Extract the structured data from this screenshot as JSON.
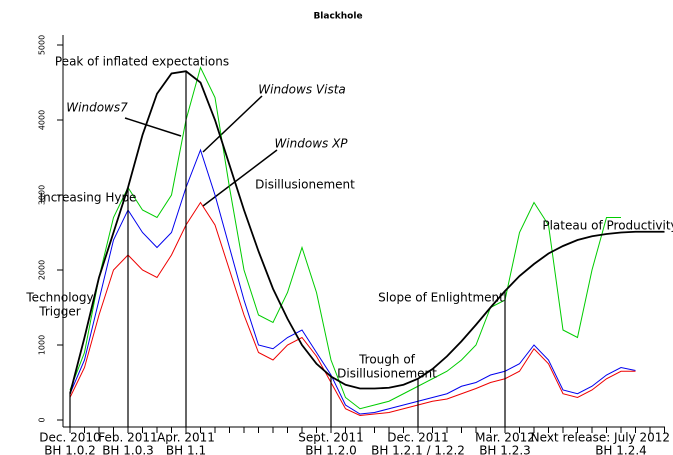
{
  "chart_data": {
    "type": "line",
    "title": "Blackhole",
    "categories": [
      "Dec. 2010",
      null,
      null,
      null,
      "Feb. 2011",
      null,
      null,
      null,
      "Apr. 2011",
      null,
      null,
      null,
      null,
      null,
      null,
      null,
      null,
      null,
      "Sept. 2011",
      null,
      null,
      null,
      null,
      null,
      "Dec. 2011",
      null,
      null,
      null,
      null,
      null,
      "Mar. 2012",
      null,
      null,
      null,
      null,
      null,
      null,
      null,
      "Next release: July 2012",
      null,
      null,
      null
    ],
    "releases": [
      "BH 1.0.2",
      null,
      null,
      null,
      "BH 1.0.3",
      null,
      null,
      null,
      "BH 1.1",
      null,
      null,
      null,
      null,
      null,
      null,
      null,
      null,
      null,
      "BH 1.2.0",
      null,
      null,
      null,
      null,
      null,
      "BH 1.2.1 / 1.2.2",
      null,
      null,
      null,
      null,
      null,
      "BH 1.2.3",
      null,
      null,
      null,
      null,
      null,
      null,
      null,
      "BH 1.2.4",
      null,
      null,
      null
    ],
    "series": [
      {
        "color": "#00cc00",
        "values": [
          400,
          900,
          1900,
          2700,
          3100,
          2800,
          2700,
          3000,
          4000,
          4700,
          4300,
          3100,
          2000,
          1400,
          1300,
          1700,
          2300,
          1700,
          800,
          300,
          150,
          200,
          250,
          350,
          450,
          550,
          650,
          800,
          1000,
          1500,
          1600,
          2500,
          2900,
          2600,
          1200,
          1100,
          2000,
          2700,
          2700,
          null,
          null,
          null
        ]
      },
      {
        "color": "#0000ee",
        "values": [
          350,
          800,
          1600,
          2400,
          2800,
          2500,
          2300,
          2500,
          3100,
          3600,
          3000,
          2300,
          1600,
          1000,
          950,
          1100,
          1200,
          900,
          600,
          200,
          80,
          100,
          150,
          200,
          250,
          300,
          350,
          450,
          500,
          600,
          650,
          750,
          1000,
          800,
          400,
          350,
          450,
          600,
          700,
          660,
          null,
          null
        ]
      },
      {
        "color": "#ee0000",
        "values": [
          300,
          700,
          1400,
          2000,
          2200,
          2000,
          1900,
          2200,
          2600,
          2900,
          2600,
          2000,
          1400,
          900,
          800,
          1000,
          1100,
          850,
          500,
          150,
          60,
          80,
          100,
          150,
          200,
          250,
          280,
          350,
          420,
          500,
          550,
          650,
          950,
          750,
          350,
          300,
          400,
          550,
          650,
          650,
          null,
          null
        ]
      },
      {
        "color": "#000000",
        "values": [
          350,
          1100,
          1900,
          2500,
          3100,
          3800,
          4350,
          4620,
          4650,
          4500,
          4000,
          3400,
          2800,
          2250,
          1750,
          1350,
          1000,
          750,
          580,
          470,
          420,
          420,
          430,
          470,
          550,
          680,
          850,
          1050,
          1270,
          1500,
          1720,
          1920,
          2080,
          2220,
          2320,
          2400,
          2450,
          2480,
          2500,
          2510,
          2510,
          2510
        ]
      }
    ],
    "ylim": [
      -100,
      5100
    ],
    "yticks": [
      0,
      1000,
      2000,
      3000,
      4000,
      5000
    ],
    "annotations": [
      [
        "Peak of inflated expectations"
      ],
      [
        "Windows7"
      ],
      [
        "Windows Vista"
      ],
      [
        "Windows XP"
      ],
      [
        "Increasing Hype"
      ],
      [
        "Disillusionement"
      ],
      [
        "Technology",
        "Trigger"
      ],
      [
        "Trough of",
        "Disillusionement"
      ],
      [
        "Slope of Enlightment"
      ],
      [
        "Plateau of Productivity"
      ]
    ]
  }
}
